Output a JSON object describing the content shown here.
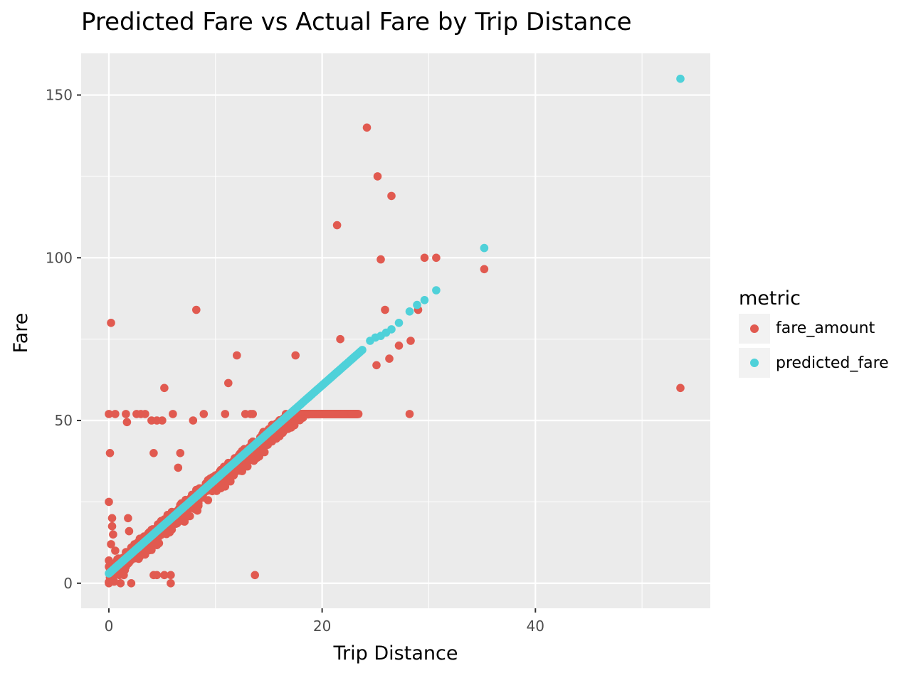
{
  "chart_data": {
    "type": "scatter",
    "title": "Predicted Fare vs Actual Fare by Trip Distance",
    "xlabel": "Trip Distance",
    "ylabel": "Fare",
    "xlim": [
      -2.6,
      56.4
    ],
    "ylim": [
      -7.7,
      162.8
    ],
    "x_ticks": [
      0,
      20,
      40
    ],
    "y_ticks": [
      0,
      50,
      100,
      150
    ],
    "x_minor_ticks": [
      10,
      30,
      50
    ],
    "y_minor_ticks": [
      25,
      75,
      125
    ],
    "grid": true,
    "legend": {
      "title": "metric",
      "position": "right",
      "entries": [
        {
          "label": "fare_amount",
          "color": "#e15a50"
        },
        {
          "label": "predicted_fare",
          "color": "#4fd1d9"
        }
      ]
    },
    "series": [
      {
        "name": "fare_amount",
        "color": "#e15a50",
        "outliers": [
          [
            24.2,
            140
          ],
          [
            25.2,
            125
          ],
          [
            26.5,
            119
          ],
          [
            21.4,
            110
          ],
          [
            25.5,
            99.5
          ],
          [
            29.6,
            100
          ],
          [
            30.7,
            100
          ],
          [
            35.2,
            96.5
          ],
          [
            8.2,
            84
          ],
          [
            25.9,
            84
          ],
          [
            29.0,
            84
          ],
          [
            0.2,
            80
          ],
          [
            21.7,
            75
          ],
          [
            28.3,
            74.5
          ],
          [
            27.2,
            73
          ],
          [
            12.0,
            70
          ],
          [
            17.5,
            70
          ],
          [
            25.1,
            67
          ],
          [
            26.3,
            69
          ],
          [
            11.2,
            61.5
          ],
          [
            5.2,
            60
          ],
          [
            53.6,
            60
          ],
          [
            0.0,
            52
          ],
          [
            0.6,
            52
          ],
          [
            1.6,
            52
          ],
          [
            2.6,
            52
          ],
          [
            3.0,
            52
          ],
          [
            3.4,
            52
          ],
          [
            6.0,
            52
          ],
          [
            8.9,
            52
          ],
          [
            10.9,
            52
          ],
          [
            12.8,
            52
          ],
          [
            13.3,
            52
          ],
          [
            13.5,
            52
          ],
          [
            22.0,
            52
          ],
          [
            22.8,
            52
          ],
          [
            23.4,
            52
          ],
          [
            28.2,
            52
          ],
          [
            1.7,
            49.5
          ],
          [
            4.0,
            50
          ],
          [
            4.5,
            50
          ],
          [
            5.0,
            50
          ],
          [
            7.9,
            50
          ],
          [
            0.1,
            40
          ],
          [
            4.2,
            40
          ],
          [
            6.7,
            40
          ],
          [
            6.5,
            35.5
          ],
          [
            0.0,
            25
          ],
          [
            0.3,
            20
          ],
          [
            1.8,
            20
          ],
          [
            0.3,
            17.5
          ],
          [
            0.4,
            15
          ],
          [
            1.9,
            16
          ],
          [
            0.2,
            12
          ],
          [
            0.6,
            10
          ],
          [
            0.0,
            7
          ],
          [
            1.0,
            5
          ],
          [
            0.5,
            3
          ],
          [
            1.0,
            2.5
          ],
          [
            1.4,
            2.5
          ],
          [
            4.2,
            2.5
          ],
          [
            4.5,
            2.5
          ],
          [
            5.2,
            2.5
          ],
          [
            5.8,
            2.5
          ],
          [
            13.7,
            2.5
          ],
          [
            0.0,
            0
          ],
          [
            1.1,
            0
          ],
          [
            2.1,
            0
          ],
          [
            5.8,
            0
          ]
        ],
        "band": {
          "x_start": 0,
          "x_end": 23.4,
          "y_intercept": 2.9,
          "slope": 2.83,
          "y_cap": 52,
          "spread": 2.6
        }
      },
      {
        "name": "predicted_fare",
        "color": "#4fd1d9",
        "line": {
          "x_start": 0,
          "x_end": 23.8,
          "y_intercept": 3.0,
          "slope": 2.89
        },
        "extra_points": [
          [
            24.5,
            74.5
          ],
          [
            25.0,
            75.5
          ],
          [
            25.5,
            76
          ],
          [
            26.0,
            77
          ],
          [
            26.5,
            78
          ],
          [
            27.2,
            80
          ],
          [
            28.2,
            83.5
          ],
          [
            28.9,
            85.5
          ],
          [
            29.6,
            87
          ],
          [
            30.7,
            90
          ],
          [
            35.2,
            103
          ],
          [
            53.6,
            155
          ]
        ]
      }
    ]
  }
}
